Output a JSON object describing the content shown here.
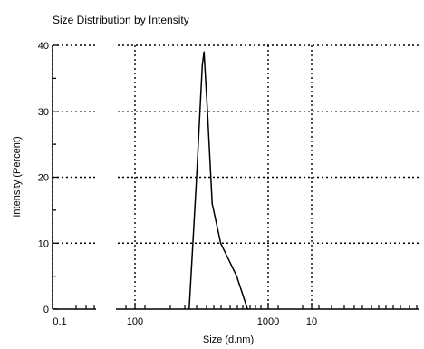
{
  "chart_data": {
    "type": "line",
    "title": "Size Distribution by Intensity",
    "xlabel": "Size (d.nm)",
    "ylabel": "Intensity (Percent)",
    "x_scale": "log",
    "x_ticks": [
      "0.1",
      "100",
      "1000",
      "10"
    ],
    "y_ticks": [
      "0",
      "10",
      "20",
      "30",
      "40"
    ],
    "ylim": [
      0,
      40
    ],
    "grid": true,
    "series": [
      {
        "color": "#000000",
        "points": [
          {
            "x": 255,
            "y": 0
          },
          {
            "x": 290,
            "y": 20
          },
          {
            "x": 320,
            "y": 37
          },
          {
            "x": 330,
            "y": 39
          },
          {
            "x": 350,
            "y": 30
          },
          {
            "x": 380,
            "y": 16
          },
          {
            "x": 440,
            "y": 10
          },
          {
            "x": 580,
            "y": 5
          },
          {
            "x": 700,
            "y": 0
          }
        ]
      }
    ]
  }
}
